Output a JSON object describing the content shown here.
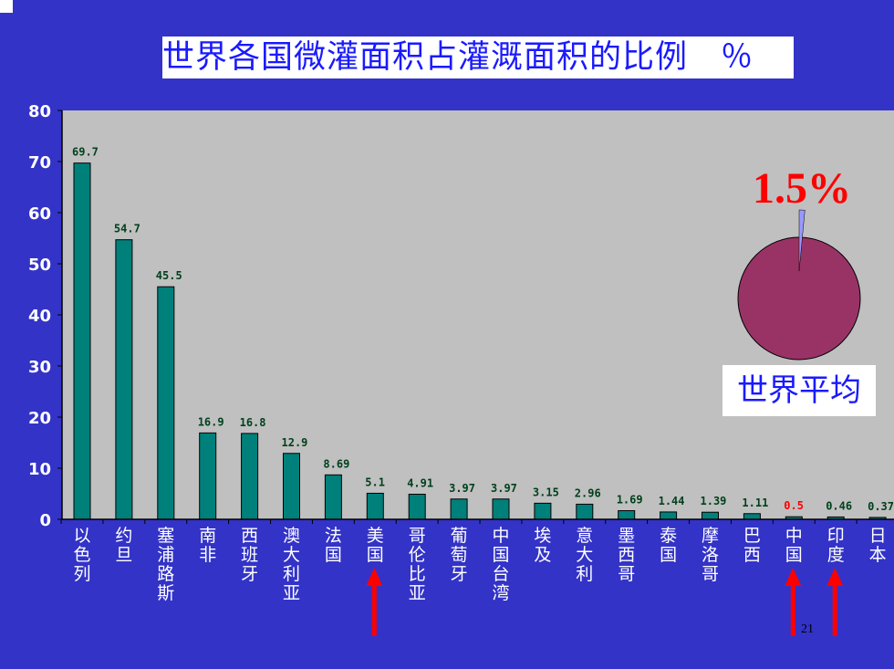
{
  "title": "世界各国微灌面积占灌溉面积的比例　％",
  "page_number": "21",
  "colors": {
    "background": "#3333c8",
    "bar": "#00807a",
    "value_label": "#00401c",
    "highlight_label": "#ff0000",
    "category_label": "#ffffff",
    "axis_label": "#ffffff",
    "arrow": "#ff0000",
    "pie_main": "#993366",
    "pie_slice": "#9999ff"
  },
  "chart_data": [
    {
      "type": "bar",
      "categories": [
        "以色列",
        "约旦",
        "塞浦路斯",
        "南非",
        "西班牙",
        "澳大利亚",
        "法国",
        "美国",
        "哥伦比亚",
        "葡萄牙",
        "中国台湾",
        "埃及",
        "意大利",
        "墨西哥",
        "泰国",
        "摩洛哥",
        "巴西",
        "中国",
        "印度",
        "日本"
      ],
      "values": [
        69.7,
        54.7,
        45.5,
        16.9,
        16.8,
        12.9,
        8.69,
        5.1,
        4.91,
        3.97,
        3.97,
        3.15,
        2.96,
        1.69,
        1.44,
        1.39,
        1.11,
        0.5,
        0.46,
        0.37
      ],
      "data_labels": [
        "69.7",
        "54.7",
        "45.5",
        "16.9",
        "16.8",
        "12.9",
        "8.69",
        "5.1",
        "4.91",
        "3.97",
        "3.97",
        "3.15",
        "2.96",
        "1.69",
        "1.44",
        "1.39",
        "1.11",
        "0.5",
        "0.46",
        "0.37"
      ],
      "highlighted_label_categories": [
        "中国"
      ],
      "arrow_marked_categories": [
        "美国",
        "中国",
        "印度"
      ],
      "ylim": [
        0,
        80
      ],
      "yticks": [
        0,
        10,
        20,
        30,
        40,
        50,
        60,
        70,
        80
      ],
      "grid": false
    },
    {
      "type": "pie",
      "values": [
        98.5,
        1.5
      ],
      "highlighted_slice_label": "1.5%",
      "caption": "世界平均"
    }
  ]
}
